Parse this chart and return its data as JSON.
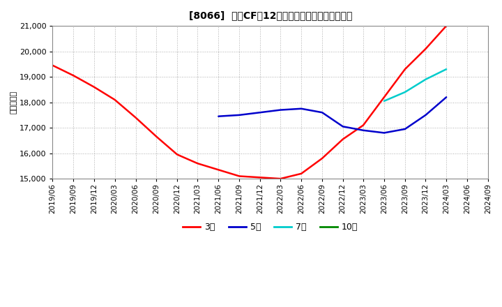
{
  "title": "[8066]  営業CFだ12か月移動合計の平均値の推移",
  "ylabel": "（百万円）",
  "ylim": [
    15000,
    21000
  ],
  "yticks": [
    15000,
    16000,
    17000,
    18000,
    19000,
    20000,
    21000
  ],
  "background_color": "#ffffff",
  "plot_bg_color": "#ffffff",
  "grid_color": "#999999",
  "series": {
    "3year": {
      "color": "#ff0000",
      "label": "3年",
      "dates": [
        "2019/06",
        "2019/09",
        "2019/12",
        "2020/03",
        "2020/06",
        "2020/09",
        "2020/12",
        "2021/03",
        "2021/06",
        "2021/09",
        "2021/12",
        "2022/03",
        "2022/06",
        "2022/09",
        "2022/12",
        "2023/03",
        "2023/06",
        "2023/09",
        "2023/12",
        "2024/03"
      ],
      "values": [
        19450,
        19050,
        18600,
        18100,
        17400,
        16650,
        15950,
        15600,
        15350,
        15100,
        15050,
        15000,
        15200,
        15800,
        16550,
        17100,
        18200,
        19300,
        20100,
        21000
      ]
    },
    "5year": {
      "color": "#0000cc",
      "label": "5年",
      "dates": [
        "2021/06",
        "2021/09",
        "2021/12",
        "2022/03",
        "2022/06",
        "2022/09",
        "2022/12",
        "2023/03",
        "2023/06",
        "2023/09",
        "2023/12",
        "2024/03"
      ],
      "values": [
        17450,
        17500,
        17600,
        17700,
        17750,
        17600,
        17050,
        16900,
        16800,
        16950,
        17500,
        18200
      ]
    },
    "7year": {
      "color": "#00cccc",
      "label": "7年",
      "dates": [
        "2023/06",
        "2023/09",
        "2023/12",
        "2024/03"
      ],
      "values": [
        18050,
        18400,
        18900,
        19300
      ]
    },
    "10year": {
      "color": "#008800",
      "label": "10年",
      "dates": [],
      "values": []
    }
  },
  "legend_entries": [
    "3年",
    "5年",
    "7年",
    "10年"
  ],
  "legend_colors": [
    "#ff0000",
    "#0000cc",
    "#00cccc",
    "#008800"
  ],
  "xmin": "2019/06",
  "xmax": "2024/09"
}
